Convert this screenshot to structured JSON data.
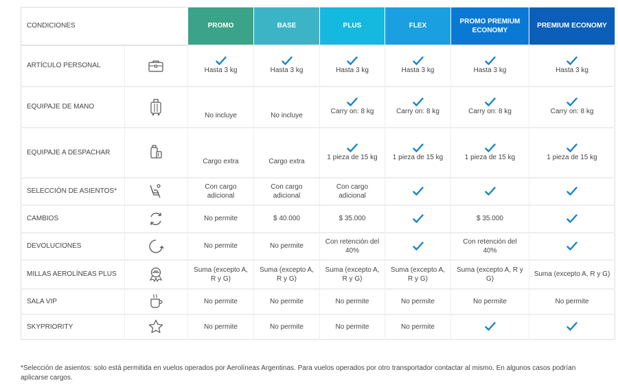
{
  "conditions_label": "CONDICIONES",
  "fares": [
    {
      "name": "PROMO",
      "color": "#3aa389"
    },
    {
      "name": "BASE",
      "color": "#3bb5c6"
    },
    {
      "name": "PLUS",
      "color": "#15b8de"
    },
    {
      "name": "FLEX",
      "color": "#1a9fe0"
    },
    {
      "name": "PROMO PREMIUM ECONOMY",
      "color": "#0a79d6"
    },
    {
      "name": "PREMIUM ECONOMY",
      "color": "#0b5fb8"
    }
  ],
  "colors": {
    "check": "#1583c6",
    "icon": "#555555",
    "grid": "#e5e5e5"
  },
  "rows": [
    {
      "label": "ARTÍCULO PERSONAL",
      "icon": "briefcase-icon",
      "height": 60,
      "cells": [
        {
          "check": true,
          "text": "Hasta 3 kg"
        },
        {
          "check": true,
          "text": "Hasta 3 kg"
        },
        {
          "check": true,
          "text": "Hasta 3 kg"
        },
        {
          "check": true,
          "text": "Hasta 3 kg"
        },
        {
          "check": true,
          "text": "Hasta 3 kg"
        },
        {
          "check": true,
          "text": "Hasta 3 kg"
        }
      ]
    },
    {
      "label": "EQUIPAJE DE MANO",
      "icon": "carry-on-icon",
      "height": 60,
      "cells": [
        {
          "check": false,
          "text": "No incluye"
        },
        {
          "check": false,
          "text": "No incluye"
        },
        {
          "check": true,
          "text": "Carry on: 8 kg"
        },
        {
          "check": true,
          "text": "Carry on: 8 kg"
        },
        {
          "check": true,
          "text": "Carry on: 8 kg"
        },
        {
          "check": true,
          "text": "Carry on: 8 kg"
        }
      ]
    },
    {
      "label": "EQUIPAJE A DESPACHAR",
      "icon": "checked-bag-icon",
      "height": 73,
      "cells": [
        {
          "check": false,
          "text": "Cargo extra"
        },
        {
          "check": false,
          "text": "Cargo extra"
        },
        {
          "check": true,
          "text": "1 pieza de 15 kg"
        },
        {
          "check": true,
          "text": "1 pieza de 15 kg"
        },
        {
          "check": true,
          "text": "1 pieza de 15 kg"
        },
        {
          "check": true,
          "text": "1 pieza de 15 kg"
        }
      ]
    },
    {
      "label": "SELECCIÓN DE ASIENTOS*",
      "icon": "seat-icon",
      "height": 40,
      "cells": [
        {
          "check": false,
          "text": "Con cargo adicional"
        },
        {
          "check": false,
          "text": "Con cargo adicional"
        },
        {
          "check": false,
          "text": "Con cargo adicional"
        },
        {
          "check": true,
          "text": ""
        },
        {
          "check": true,
          "text": ""
        },
        {
          "check": true,
          "text": ""
        }
      ]
    },
    {
      "label": "CAMBIOS",
      "icon": "exchange-icon",
      "height": 40,
      "cells": [
        {
          "check": false,
          "text": "No permite"
        },
        {
          "check": false,
          "text": "$ 40.000"
        },
        {
          "check": false,
          "text": "$ 35.000"
        },
        {
          "check": true,
          "text": ""
        },
        {
          "check": false,
          "text": "$ 35.000"
        },
        {
          "check": true,
          "text": ""
        }
      ]
    },
    {
      "label": "DEVOLUCIONES",
      "icon": "refund-icon",
      "height": 40,
      "cells": [
        {
          "check": false,
          "text": "No permite"
        },
        {
          "check": false,
          "text": "No permite"
        },
        {
          "check": false,
          "text": "Con retención del 40%"
        },
        {
          "check": true,
          "text": ""
        },
        {
          "check": false,
          "text": "Con retención del 40%"
        },
        {
          "check": true,
          "text": ""
        }
      ]
    },
    {
      "label": "MILLAS AEROLÍNEAS PLUS",
      "icon": "miles-icon",
      "height": 42,
      "cells": [
        {
          "check": false,
          "text": "Suma (excepto A, R y G)"
        },
        {
          "check": false,
          "text": "Suma (excepto A, R y G)"
        },
        {
          "check": false,
          "text": "Suma (excepto A, R y G)"
        },
        {
          "check": false,
          "text": "Suma (excepto A, R y G)"
        },
        {
          "check": false,
          "text": "Suma (excepto A, R y G)"
        },
        {
          "check": false,
          "text": "Suma (excepto A, R y G)"
        }
      ]
    },
    {
      "label": "SALA VIP",
      "icon": "coffee-cup-icon",
      "height": 37,
      "cells": [
        {
          "check": false,
          "text": "No permite"
        },
        {
          "check": false,
          "text": "No permite"
        },
        {
          "check": false,
          "text": "No permite"
        },
        {
          "check": false,
          "text": "No permite"
        },
        {
          "check": false,
          "text": "No permite"
        },
        {
          "check": false,
          "text": "No permite"
        }
      ]
    },
    {
      "label": "SKYPRIORITY",
      "icon": "star-icon",
      "height": 37,
      "cells": [
        {
          "check": false,
          "text": "No permite"
        },
        {
          "check": false,
          "text": "No permite"
        },
        {
          "check": false,
          "text": "No permite"
        },
        {
          "check": false,
          "text": "No permite"
        },
        {
          "check": true,
          "text": ""
        },
        {
          "check": true,
          "text": ""
        }
      ]
    }
  ],
  "footnote": "*Selección de asientos: solo está permitida en vuelos operados por Aerolíneas Argentinas. Para vuelos operados por otro transportador contactar al mismo. En algunos casos podrían aplicarse cargos."
}
